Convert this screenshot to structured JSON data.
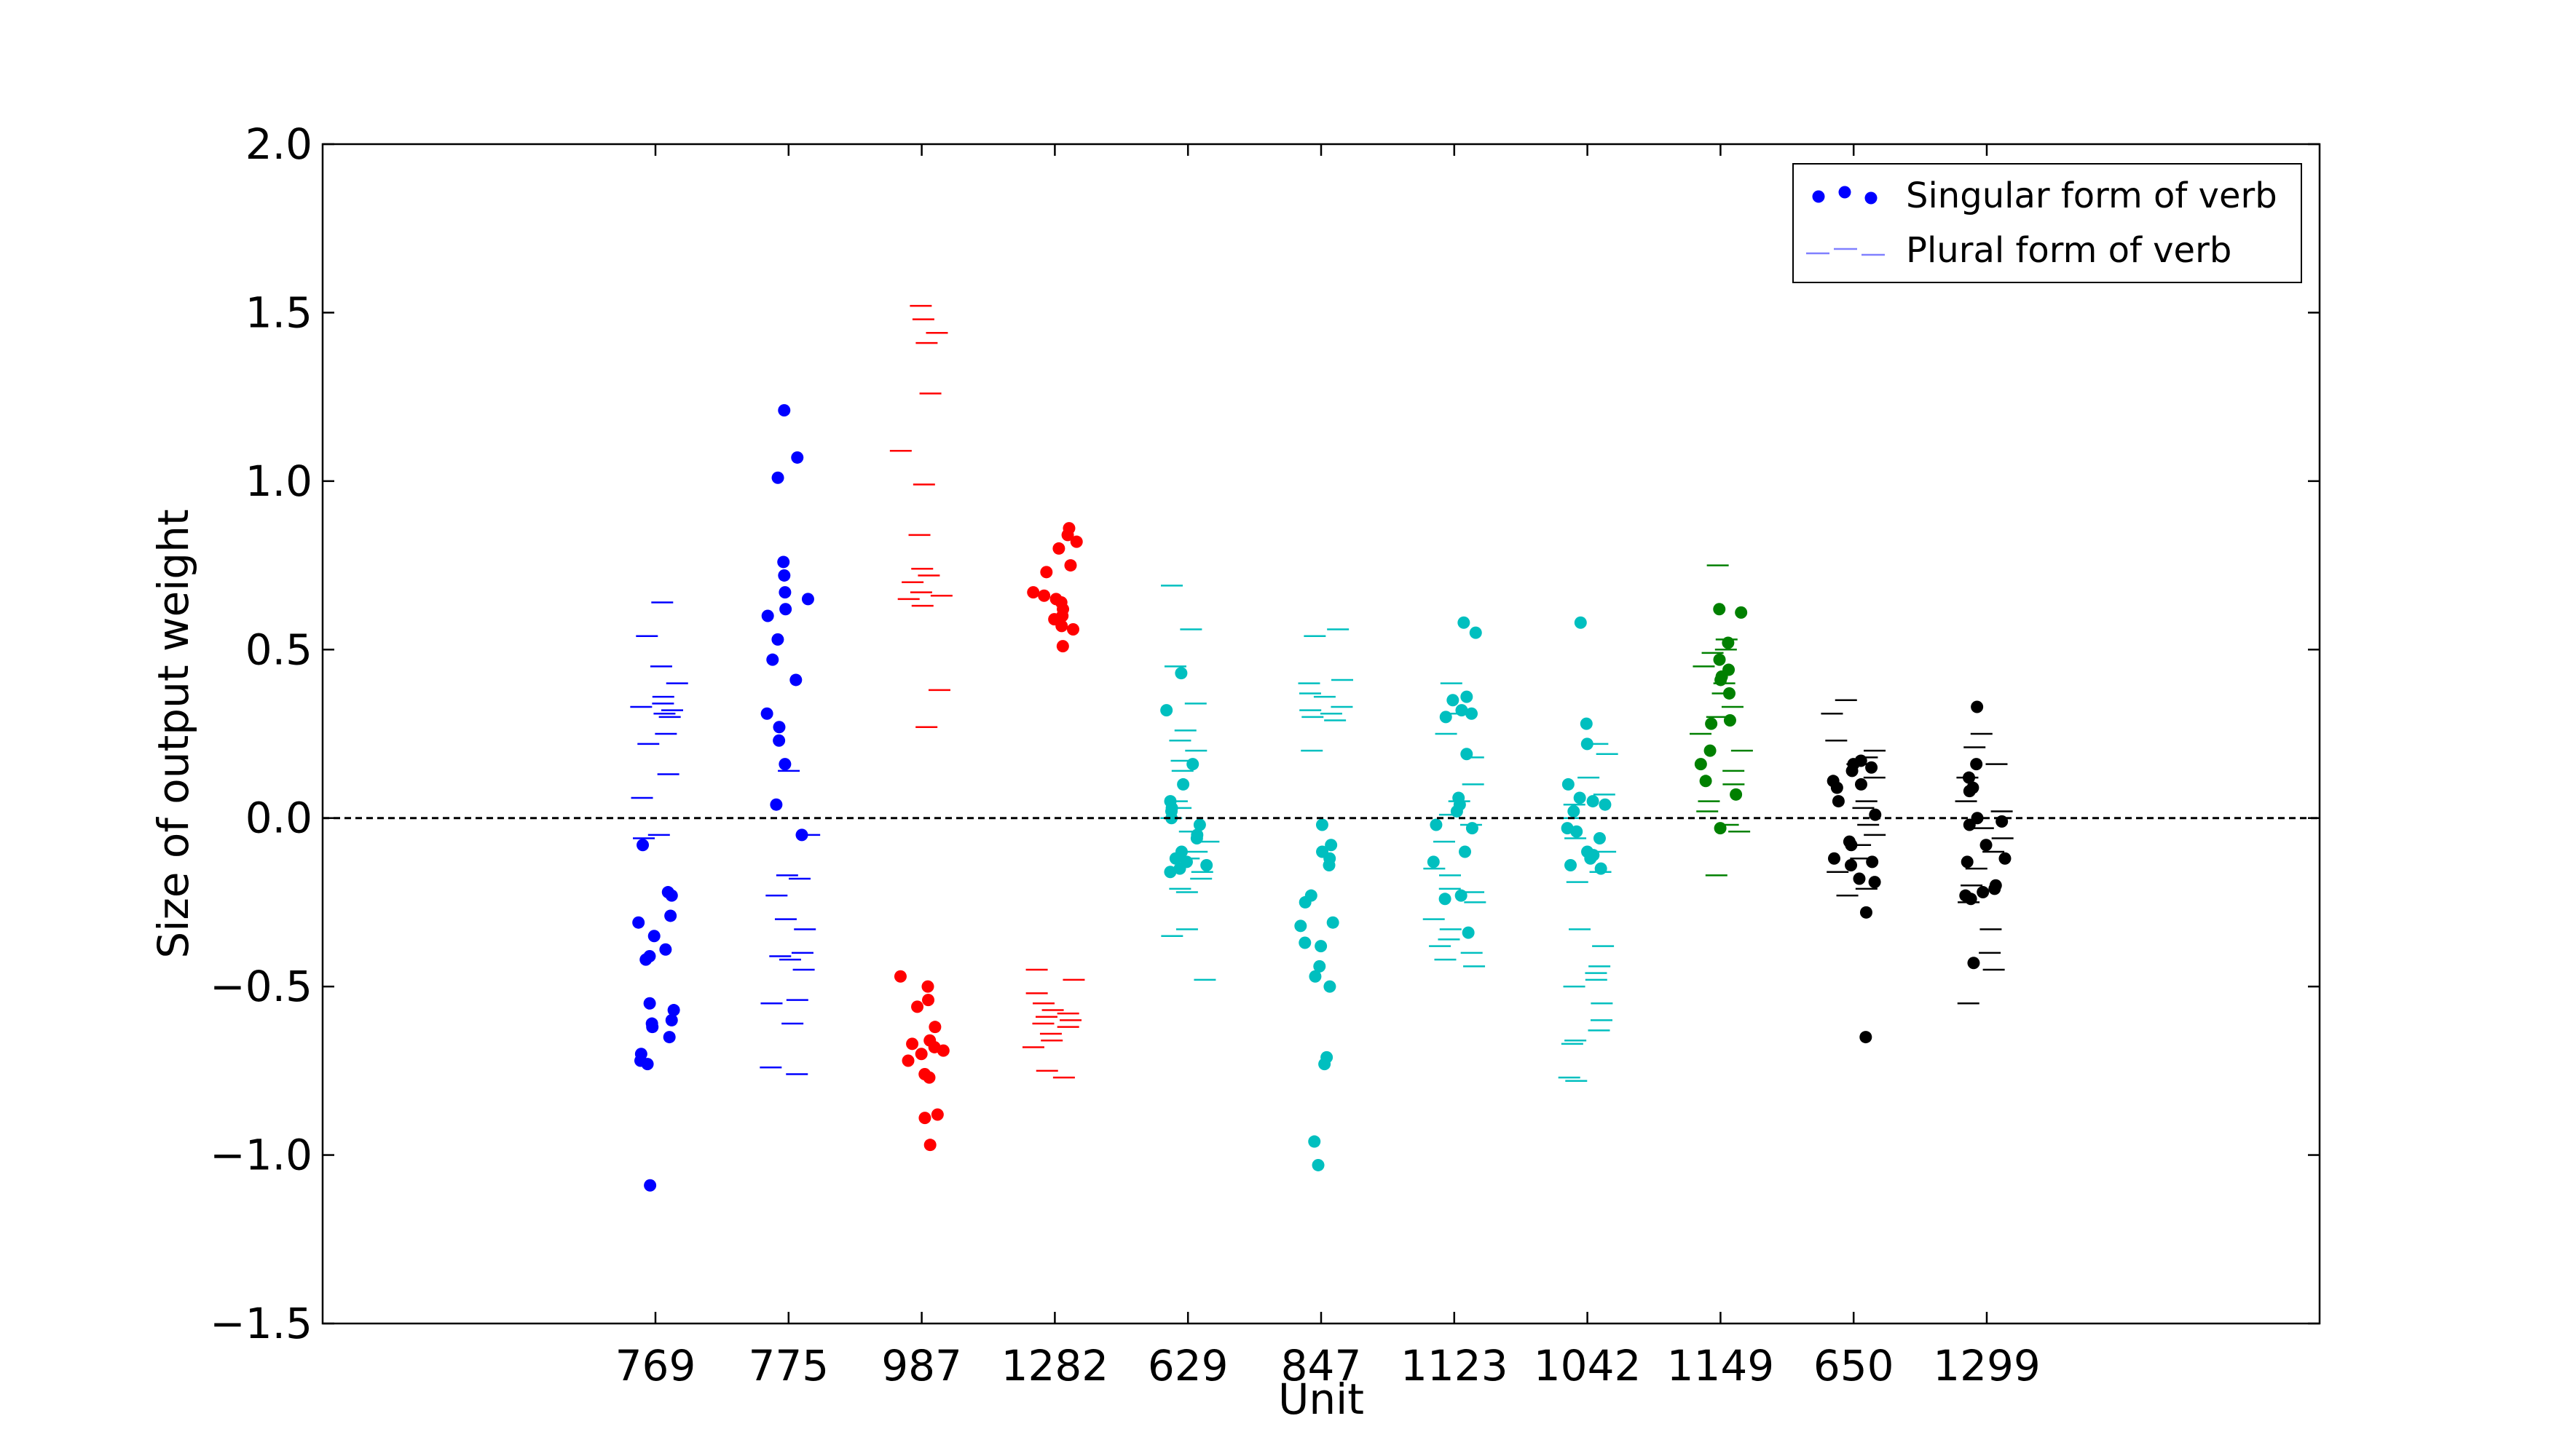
{
  "chart_data": {
    "type": "scatter",
    "title": "",
    "xlabel": "Unit",
    "ylabel": "Size of output weight",
    "categories": [
      "769",
      "775",
      "987",
      "1282",
      "629",
      "847",
      "1123",
      "1042",
      "1149",
      "650",
      "1299"
    ],
    "xlim": [
      -2.5,
      12.5
    ],
    "ylim": [
      -1.5,
      2.0
    ],
    "yticks": [
      -1.5,
      -1.0,
      -0.5,
      0.0,
      0.5,
      1.0,
      1.5,
      2.0
    ],
    "ytick_labels": [
      "−1.5",
      "−1.0",
      "−0.5",
      "0.0",
      "0.5",
      "1.0",
      "1.5",
      "2.0"
    ],
    "reference_line": {
      "y": 0.0,
      "style": "dashed",
      "color": "#000000"
    },
    "grid": false,
    "legend": {
      "placement": "top-right",
      "entries": [
        {
          "label": "Singular form of verb",
          "marker": "dot"
        },
        {
          "label": "Plural form of verb",
          "marker": "dash"
        }
      ]
    },
    "series": [
      {
        "unit": "769",
        "color": "#0000ff",
        "singular": [
          -0.08,
          -0.22,
          -0.23,
          -0.29,
          -0.31,
          -0.35,
          -0.39,
          -0.41,
          -0.42,
          -0.55,
          -0.57,
          -0.6,
          -0.61,
          -0.62,
          -0.65,
          -0.7,
          -0.72,
          -0.73,
          -1.09
        ],
        "plural": [
          0.64,
          0.54,
          0.45,
          0.4,
          0.36,
          0.34,
          0.33,
          0.32,
          0.31,
          0.3,
          0.25,
          0.22,
          0.13,
          0.06,
          -0.05,
          -0.06
        ]
      },
      {
        "unit": "775",
        "color": "#0000ff",
        "singular": [
          1.21,
          1.07,
          1.01,
          0.76,
          0.72,
          0.67,
          0.65,
          0.62,
          0.6,
          0.53,
          0.47,
          0.41,
          0.31,
          0.27,
          0.23,
          0.16,
          0.04,
          -0.05
        ],
        "plural": [
          0.14,
          -0.05,
          -0.17,
          -0.18,
          -0.23,
          -0.3,
          -0.33,
          -0.4,
          -0.41,
          -0.42,
          -0.45,
          -0.54,
          -0.55,
          -0.61,
          -0.74,
          -0.76
        ]
      },
      {
        "unit": "987",
        "color": "#ff0000",
        "singular": [
          -0.47,
          -0.5,
          -0.54,
          -0.56,
          -0.62,
          -0.66,
          -0.67,
          -0.68,
          -0.69,
          -0.7,
          -0.72,
          -0.76,
          -0.77,
          -0.88,
          -0.89,
          -0.97
        ],
        "plural": [
          1.52,
          1.48,
          1.44,
          1.41,
          1.26,
          1.09,
          0.99,
          0.84,
          0.74,
          0.72,
          0.7,
          0.67,
          0.66,
          0.65,
          0.63,
          0.38,
          0.27
        ]
      },
      {
        "unit": "1282",
        "color": "#ff0000",
        "singular": [
          0.86,
          0.84,
          0.82,
          0.8,
          0.75,
          0.73,
          0.67,
          0.66,
          0.65,
          0.64,
          0.62,
          0.6,
          0.59,
          0.57,
          0.56,
          0.51
        ],
        "plural": [
          -0.45,
          -0.48,
          -0.52,
          -0.55,
          -0.57,
          -0.58,
          -0.59,
          -0.6,
          -0.61,
          -0.62,
          -0.64,
          -0.66,
          -0.68,
          -0.75,
          -0.77
        ]
      },
      {
        "unit": "629",
        "color": "#00bfbf",
        "singular": [
          0.43,
          0.32,
          0.16,
          0.1,
          0.05,
          0.03,
          0.02,
          0.0,
          -0.02,
          -0.05,
          -0.06,
          -0.1,
          -0.12,
          -0.13,
          -0.14,
          -0.15,
          -0.16
        ],
        "plural": [
          0.69,
          0.56,
          0.45,
          0.34,
          0.26,
          0.23,
          0.2,
          0.17,
          0.14,
          0.05,
          0.03,
          0.0,
          -0.04,
          -0.07,
          -0.1,
          -0.12,
          -0.16,
          -0.18,
          -0.21,
          -0.22,
          -0.33,
          -0.35,
          -0.48
        ]
      },
      {
        "unit": "847",
        "color": "#00bfbf",
        "singular": [
          -0.02,
          -0.08,
          -0.1,
          -0.12,
          -0.14,
          -0.23,
          -0.25,
          -0.31,
          -0.32,
          -0.37,
          -0.38,
          -0.44,
          -0.47,
          -0.5,
          -0.71,
          -0.73,
          -0.96,
          -1.03
        ],
        "plural": [
          0.56,
          0.54,
          0.41,
          0.4,
          0.37,
          0.36,
          0.33,
          0.32,
          0.31,
          0.3,
          0.29,
          0.2
        ]
      },
      {
        "unit": "1123",
        "color": "#00bfbf",
        "singular": [
          0.58,
          0.55,
          0.36,
          0.35,
          0.32,
          0.31,
          0.3,
          0.19,
          0.06,
          0.04,
          0.02,
          -0.02,
          -0.03,
          -0.1,
          -0.13,
          -0.23,
          -0.24,
          -0.34
        ],
        "plural": [
          0.4,
          0.31,
          0.25,
          0.18,
          0.1,
          0.05,
          0.01,
          -0.02,
          -0.07,
          -0.15,
          -0.17,
          -0.21,
          -0.22,
          -0.25,
          -0.3,
          -0.33,
          -0.36,
          -0.38,
          -0.4,
          -0.42,
          -0.44
        ]
      },
      {
        "unit": "1042",
        "color": "#00bfbf",
        "singular": [
          0.58,
          0.28,
          0.22,
          0.1,
          0.06,
          0.05,
          0.04,
          0.02,
          -0.03,
          -0.04,
          -0.06,
          -0.1,
          -0.11,
          -0.12,
          -0.14,
          -0.15
        ],
        "plural": [
          0.22,
          0.19,
          0.12,
          0.07,
          0.04,
          0.0,
          -0.06,
          -0.1,
          -0.16,
          -0.19,
          -0.33,
          -0.38,
          -0.44,
          -0.46,
          -0.48,
          -0.5,
          -0.55,
          -0.6,
          -0.63,
          -0.66,
          -0.67,
          -0.77,
          -0.78
        ]
      },
      {
        "unit": "1149",
        "color": "#008000",
        "singular": [
          0.62,
          0.61,
          0.52,
          0.47,
          0.44,
          0.42,
          0.41,
          0.37,
          0.29,
          0.28,
          0.2,
          0.16,
          0.11,
          0.07,
          -0.03
        ],
        "plural": [
          0.75,
          0.53,
          0.5,
          0.49,
          0.45,
          0.4,
          0.37,
          0.33,
          0.3,
          0.25,
          0.2,
          0.14,
          0.1,
          0.05,
          0.02,
          -0.02,
          -0.04,
          -0.17
        ]
      },
      {
        "unit": "650",
        "color": "#000000",
        "singular": [
          0.17,
          0.16,
          0.15,
          0.14,
          0.11,
          0.1,
          0.09,
          0.05,
          0.01,
          -0.07,
          -0.08,
          -0.12,
          -0.13,
          -0.14,
          -0.18,
          -0.19,
          -0.28,
          -0.65
        ],
        "plural": [
          0.35,
          0.31,
          0.23,
          0.2,
          0.18,
          0.16,
          0.12,
          0.05,
          0.03,
          -0.02,
          -0.05,
          -0.08,
          -0.12,
          -0.16,
          -0.21,
          -0.23
        ]
      },
      {
        "unit": "1299",
        "color": "#000000",
        "singular": [
          0.33,
          0.16,
          0.12,
          0.09,
          0.08,
          0.0,
          -0.01,
          -0.02,
          -0.08,
          -0.12,
          -0.13,
          -0.2,
          -0.21,
          -0.22,
          -0.23,
          -0.24,
          -0.43
        ],
        "plural": [
          0.25,
          0.21,
          0.16,
          0.12,
          0.05,
          0.02,
          -0.03,
          -0.06,
          -0.1,
          -0.15,
          -0.2,
          -0.25,
          -0.33,
          -0.4,
          -0.45,
          -0.55
        ]
      }
    ]
  }
}
